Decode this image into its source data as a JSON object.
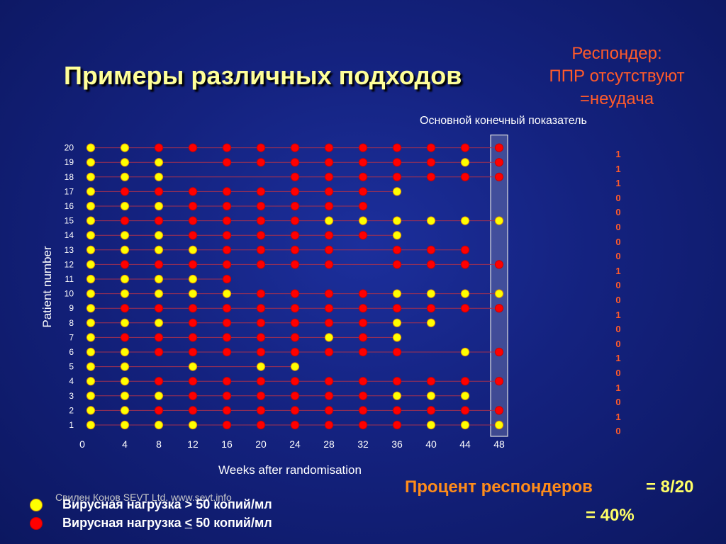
{
  "slide": {
    "title": "Примеры различных подходов",
    "responder_note": [
      "Респондер:",
      "ППР отсутствуют",
      "=неудача"
    ],
    "endpoint_label": "Основной конечный показатель",
    "percent_label": "Процент респондеров",
    "percent_value": "= 8/20",
    "percent_pct": "= 40%",
    "credit": "Свилен Конов SEVT Ltd. www.sevt.info",
    "legend": [
      {
        "color": "#ffff00",
        "prefix": "Вирусная нагрузка ",
        "symbol": ">",
        "suffix": " 50 копий/мл"
      },
      {
        "color": "#ff0000",
        "prefix": "Вирусная нагрузка ",
        "symbol": "<",
        "suffix": " 50 копий/мл"
      }
    ]
  },
  "chart_data": {
    "type": "scatter",
    "xlabel": "Weeks after randomisation",
    "ylabel": "Patient number",
    "x_ticks": [
      0,
      4,
      8,
      12,
      16,
      20,
      24,
      28,
      32,
      36,
      40,
      44,
      48
    ],
    "y_ticks": [
      1,
      2,
      3,
      4,
      5,
      6,
      7,
      8,
      9,
      10,
      11,
      12,
      13,
      14,
      15,
      16,
      17,
      18,
      19,
      20
    ],
    "xlim": [
      0,
      48
    ],
    "ylim": [
      1,
      20
    ],
    "highlighted_week": 48,
    "status_colors": {
      "Y": "#ffff00",
      "R": "#ff0000"
    },
    "patients": [
      {
        "id": 20,
        "visits": "YYRRRRRRRRRRR"
      },
      {
        "id": 19,
        "visits": "YYY.RRRRRRRYR"
      },
      {
        "id": 18,
        "visits": "YYY...RRRRRRR"
      },
      {
        "id": 17,
        "visits": "YRRRRRRRRY..."
      },
      {
        "id": 16,
        "visits": "YYYRRRRRR...."
      },
      {
        "id": 15,
        "visits": "YRRRRRRYYYYYY"
      },
      {
        "id": 14,
        "visits": "YYYRRRRRRY..."
      },
      {
        "id": 13,
        "visits": "YYYYRRRR.RRR."
      },
      {
        "id": 12,
        "visits": "YRRRRRRR.RRRR"
      },
      {
        "id": 11,
        "visits": "YYYYR........"
      },
      {
        "id": 10,
        "visits": "YYYYYRRRRYYYY"
      },
      {
        "id": 9,
        "visits": "YRRRRRRRRRRRR"
      },
      {
        "id": 8,
        "visits": "YYYRRRRRRYY.."
      },
      {
        "id": 7,
        "visits": "YRRRRRRYRY..."
      },
      {
        "id": 6,
        "visits": "YYRRRRRRRR.YR"
      },
      {
        "id": 5,
        "visits": "YY.Y.YY......"
      },
      {
        "id": 4,
        "visits": "YYRRRRRRRRRRR"
      },
      {
        "id": 3,
        "visits": "YYYRRRRRRYYY."
      },
      {
        "id": 2,
        "visits": "YYRRRRRRRRRRR"
      },
      {
        "id": 1,
        "visits": "YYYYRRRRRRYYY"
      }
    ],
    "outcomes": [
      "1",
      "1",
      "1",
      "0",
      "0",
      "0",
      "0",
      "0",
      "1",
      "0",
      "0",
      "1",
      "0",
      "0",
      "1",
      "0",
      "1",
      "0",
      "1",
      "0"
    ]
  }
}
